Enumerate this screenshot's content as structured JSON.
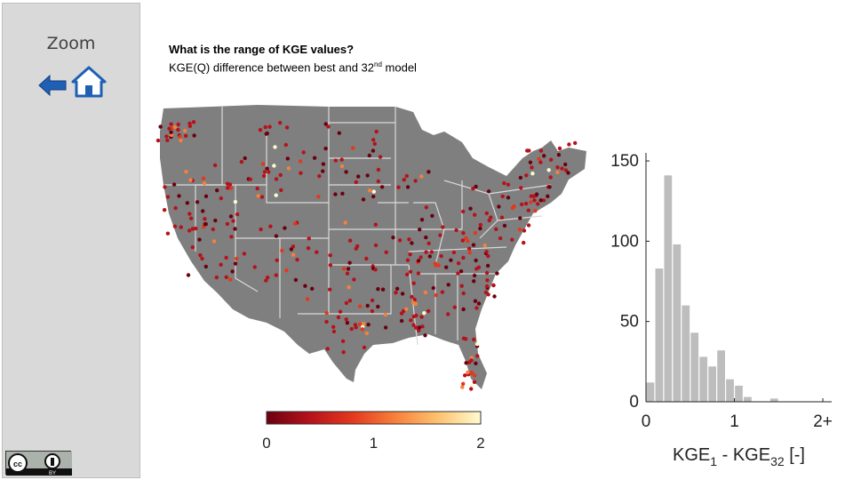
{
  "sidebar": {
    "zoom_label": "Zoom",
    "back_icon": "arrow-left-icon",
    "home_icon": "home-icon",
    "license_icon": "cc-by-icon",
    "license_text_cc": "cc",
    "license_text_by": "BY"
  },
  "content": {
    "title": "What is the range of KGE values?",
    "subtitle_main": "KGE(Q) difference between best and 32",
    "subtitle_sup": "nd",
    "subtitle_end": " model"
  },
  "colors": {
    "map_fill": "#7f7f7f",
    "border": "#d9d9d9",
    "bar_fill": "#bdbdbd"
  },
  "colorbar": {
    "ticks": [
      "0",
      "1",
      "2"
    ],
    "stops": [
      "#6b0010",
      "#b5121b",
      "#e4381d",
      "#f7803a",
      "#fdc26e",
      "#fffbd0"
    ]
  },
  "chart_data": {
    "type": "bar",
    "categories": [
      "0",
      "0.1",
      "0.2",
      "0.3",
      "0.4",
      "0.5",
      "0.6",
      "0.7",
      "0.8",
      "0.9",
      "1.0",
      "1.1",
      "1.2",
      "1.3",
      "1.4",
      "1.5",
      "1.6",
      "1.7",
      "1.8",
      "1.9",
      "2.0"
    ],
    "values": [
      12,
      83,
      141,
      98,
      60,
      43,
      28,
      22,
      32,
      14,
      10,
      3,
      0,
      0,
      2,
      0,
      0,
      0,
      0,
      0,
      0
    ],
    "xlabel": "KGE1 - KGE32 [-]",
    "xtick_labels": [
      "0",
      "1",
      "2+"
    ],
    "ylabel": "",
    "yticks": [
      "0",
      "50",
      "100",
      "150"
    ],
    "ylim": [
      0,
      155
    ],
    "xlim": [
      0,
      2.1
    ]
  }
}
